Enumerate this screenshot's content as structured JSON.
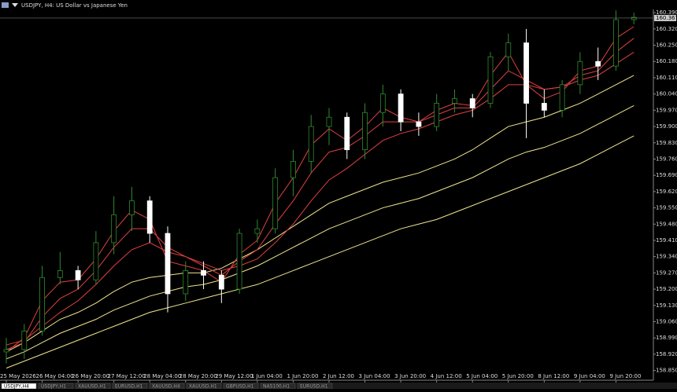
{
  "chart_data": {
    "type": "candlestick",
    "title": "USDJPY, H4:  US Dollar vs Japanese Yen",
    "categories": [
      "25 May 2026",
      null,
      "26 May 04:00",
      null,
      "26 May 20:00",
      null,
      "27 May 12:00",
      null,
      "28 May 04:00",
      null,
      "28 May 20:00",
      null,
      "29 May 12:00",
      null,
      "1 Jun 04:00",
      null,
      "1 Jun 20:00",
      null,
      "2 Jun 12:00",
      null,
      "3 Jun 04:00",
      null,
      "3 Jun 20:00",
      null,
      "4 Jun 12:00",
      null,
      "5 Jun 04:00",
      null,
      "5 Jun 20:00",
      null,
      "8 Jun 12:00",
      null,
      "9 Jun 04:00",
      null,
      "9 Jun 20:00",
      null
    ],
    "open": [
      158.93,
      158.94,
      159.02,
      159.25,
      159.28,
      159.24,
      159.4,
      159.52,
      159.58,
      159.44,
      159.18,
      159.28,
      159.26,
      159.2,
      159.44,
      159.46,
      159.68,
      159.75,
      159.9,
      159.94,
      159.8,
      159.96,
      160.04,
      159.92,
      159.9,
      160.0,
      160.02,
      160.0,
      160.2,
      160.26,
      160.0,
      159.97,
      160.08,
      160.18,
      160.16,
      160.36
    ],
    "high": [
      158.99,
      159.05,
      159.3,
      159.36,
      159.3,
      159.45,
      159.6,
      159.64,
      159.6,
      159.47,
      159.32,
      159.32,
      159.28,
      159.46,
      159.5,
      159.72,
      159.8,
      159.95,
      159.98,
      159.96,
      160.0,
      160.08,
      160.06,
      159.96,
      160.04,
      160.06,
      160.04,
      160.22,
      160.3,
      160.32,
      160.06,
      160.1,
      160.22,
      160.24,
      160.4,
      160.39
    ],
    "low": [
      158.88,
      158.9,
      159.0,
      159.22,
      159.2,
      159.22,
      159.35,
      159.45,
      159.4,
      159.1,
      159.15,
      159.2,
      159.14,
      159.18,
      159.4,
      159.44,
      159.6,
      159.7,
      159.82,
      159.76,
      159.76,
      159.9,
      159.88,
      159.86,
      159.88,
      159.96,
      159.94,
      159.98,
      160.14,
      159.85,
      159.94,
      159.94,
      160.04,
      160.1,
      160.14,
      160.34
    ],
    "close": [
      158.94,
      159.02,
      159.25,
      159.28,
      159.24,
      159.4,
      159.52,
      159.58,
      159.44,
      159.18,
      159.28,
      159.26,
      159.2,
      159.44,
      159.46,
      159.68,
      159.75,
      159.9,
      159.94,
      159.8,
      159.96,
      160.04,
      159.92,
      159.9,
      160.0,
      160.02,
      159.98,
      160.2,
      160.26,
      160.0,
      159.97,
      160.08,
      160.18,
      160.16,
      160.36,
      160.37
    ],
    "up_color": "#2e8b2e",
    "down_color": "#ffffff",
    "series": [
      {
        "color": "#f0e68c",
        "values": [
          158.86,
          158.89,
          158.92,
          158.95,
          158.98,
          159.01,
          159.04,
          159.07,
          159.1,
          159.12,
          159.14,
          159.16,
          159.18,
          159.2,
          159.22,
          159.25,
          159.28,
          159.31,
          159.34,
          159.37,
          159.4,
          159.43,
          159.46,
          159.48,
          159.5,
          159.53,
          159.56,
          159.59,
          159.62,
          159.65,
          159.68,
          159.71,
          159.74,
          159.78,
          159.82,
          159.86
        ]
      },
      {
        "color": "#f0e68c",
        "values": [
          158.9,
          158.93,
          158.97,
          159.01,
          159.04,
          159.07,
          159.11,
          159.14,
          159.17,
          159.19,
          159.21,
          159.22,
          159.24,
          159.27,
          159.3,
          159.34,
          159.38,
          159.42,
          159.46,
          159.49,
          159.52,
          159.55,
          159.57,
          159.59,
          159.62,
          159.65,
          159.68,
          159.72,
          159.76,
          159.79,
          159.81,
          159.84,
          159.87,
          159.91,
          159.95,
          159.99
        ]
      },
      {
        "color": "#f0e68c",
        "values": [
          158.93,
          158.97,
          159.02,
          159.07,
          159.1,
          159.14,
          159.19,
          159.23,
          159.25,
          159.26,
          159.27,
          159.27,
          159.29,
          159.33,
          159.37,
          159.42,
          159.47,
          159.52,
          159.57,
          159.6,
          159.63,
          159.66,
          159.68,
          159.7,
          159.73,
          159.76,
          159.8,
          159.85,
          159.9,
          159.92,
          159.94,
          159.97,
          160.0,
          160.04,
          160.08,
          160.12
        ]
      },
      {
        "color": "#e04040",
        "values": [
          158.96,
          158.98,
          159.04,
          159.1,
          159.15,
          159.22,
          159.3,
          159.37,
          159.4,
          159.36,
          159.34,
          159.31,
          159.28,
          159.3,
          159.33,
          159.4,
          159.48,
          159.58,
          159.67,
          159.72,
          159.78,
          159.84,
          159.87,
          159.89,
          159.92,
          159.95,
          159.97,
          160.02,
          160.08,
          160.08,
          160.06,
          160.07,
          160.1,
          160.12,
          160.17,
          160.22
        ]
      },
      {
        "color": "#e04040",
        "values": [
          158.94,
          158.97,
          159.08,
          159.16,
          159.2,
          159.28,
          159.38,
          159.46,
          159.46,
          159.38,
          159.34,
          159.3,
          159.26,
          159.32,
          159.37,
          159.48,
          159.58,
          159.7,
          159.79,
          159.81,
          159.86,
          159.92,
          159.92,
          159.92,
          159.95,
          159.98,
          159.98,
          160.06,
          160.14,
          160.1,
          160.06,
          160.07,
          160.12,
          160.14,
          160.22,
          160.28
        ]
      },
      {
        "color": "#e04040",
        "values": [
          158.93,
          158.99,
          159.15,
          159.23,
          159.24,
          159.33,
          159.45,
          159.54,
          159.5,
          159.32,
          159.3,
          159.28,
          159.23,
          159.35,
          159.41,
          159.57,
          159.68,
          159.82,
          159.89,
          159.84,
          159.9,
          159.98,
          159.94,
          159.92,
          159.97,
          160.0,
          159.99,
          160.12,
          160.22,
          160.08,
          160.02,
          160.05,
          160.14,
          160.16,
          160.28,
          160.33
        ]
      }
    ],
    "current_price": 160.367,
    "ylim": [
      158.808,
      160.404
    ],
    "yticks": [
      {
        "value": 158.85,
        "label": "158.850"
      },
      {
        "value": 158.92,
        "label": "158.920"
      },
      {
        "value": 158.99,
        "label": "158.990"
      },
      {
        "value": 159.06,
        "label": "159.060"
      },
      {
        "value": 159.13,
        "label": "159.130"
      },
      {
        "value": 159.2,
        "label": "159.200"
      },
      {
        "value": 159.27,
        "label": "159.270"
      },
      {
        "value": 159.34,
        "label": "159.340"
      },
      {
        "value": 159.41,
        "label": "159.410"
      },
      {
        "value": 159.48,
        "label": "159.480"
      },
      {
        "value": 159.55,
        "label": "159.550"
      },
      {
        "value": 159.62,
        "label": "159.620"
      },
      {
        "value": 159.69,
        "label": "159.690"
      },
      {
        "value": 159.76,
        "label": "159.760"
      },
      {
        "value": 159.83,
        "label": "159.830"
      },
      {
        "value": 159.9,
        "label": "159.900"
      },
      {
        "value": 159.97,
        "label": "159.970"
      },
      {
        "value": 160.04,
        "label": "160.040"
      },
      {
        "value": 160.11,
        "label": "160.110"
      },
      {
        "value": 160.18,
        "label": "160.180"
      },
      {
        "value": 160.25,
        "label": "160.250"
      },
      {
        "value": 160.32,
        "label": "160.320"
      },
      {
        "value": 160.39,
        "label": "160.390"
      }
    ]
  },
  "tabs": [
    "USDJPY,H4",
    "USDJPY,H1",
    "XAUUSD,H1",
    "EURUSD,H1",
    "XAUUSD,H4",
    "XAUUSD,H1",
    "GBPUSD,H1",
    "NAS100,H1",
    "EURUSD,H1"
  ]
}
